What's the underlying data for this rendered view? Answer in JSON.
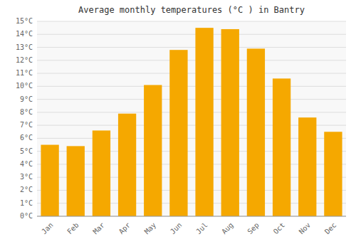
{
  "chart_data": {
    "type": "bar",
    "title": "Average monthly temperatures (°C ) in Bantry",
    "categories": [
      "Jan",
      "Feb",
      "Mar",
      "Apr",
      "May",
      "Jun",
      "Jul",
      "Aug",
      "Sep",
      "Oct",
      "Nov",
      "Dec"
    ],
    "values": [
      5.5,
      5.4,
      6.6,
      7.9,
      10.1,
      12.8,
      14.5,
      14.4,
      12.9,
      10.6,
      7.6,
      6.5
    ],
    "color": "#F5A800",
    "ylim": [
      0,
      15
    ],
    "yticks": [
      {
        "value": 0,
        "label": "0°C"
      },
      {
        "value": 1,
        "label": "1°C"
      },
      {
        "value": 2,
        "label": "2°C"
      },
      {
        "value": 3,
        "label": "3°C"
      },
      {
        "value": 4,
        "label": "4°C"
      },
      {
        "value": 5,
        "label": "5°C"
      },
      {
        "value": 6,
        "label": "6°C"
      },
      {
        "value": 7,
        "label": "7°C"
      },
      {
        "value": 8,
        "label": "8°C"
      },
      {
        "value": 9,
        "label": "9°C"
      },
      {
        "value": 10,
        "label": "10°C"
      },
      {
        "value": 11,
        "label": "11°C"
      },
      {
        "value": 12,
        "label": "12°C"
      },
      {
        "value": 13,
        "label": "13°C"
      },
      {
        "value": 14,
        "label": "14°C"
      },
      {
        "value": 15,
        "label": "15°C"
      }
    ],
    "grid": true
  }
}
